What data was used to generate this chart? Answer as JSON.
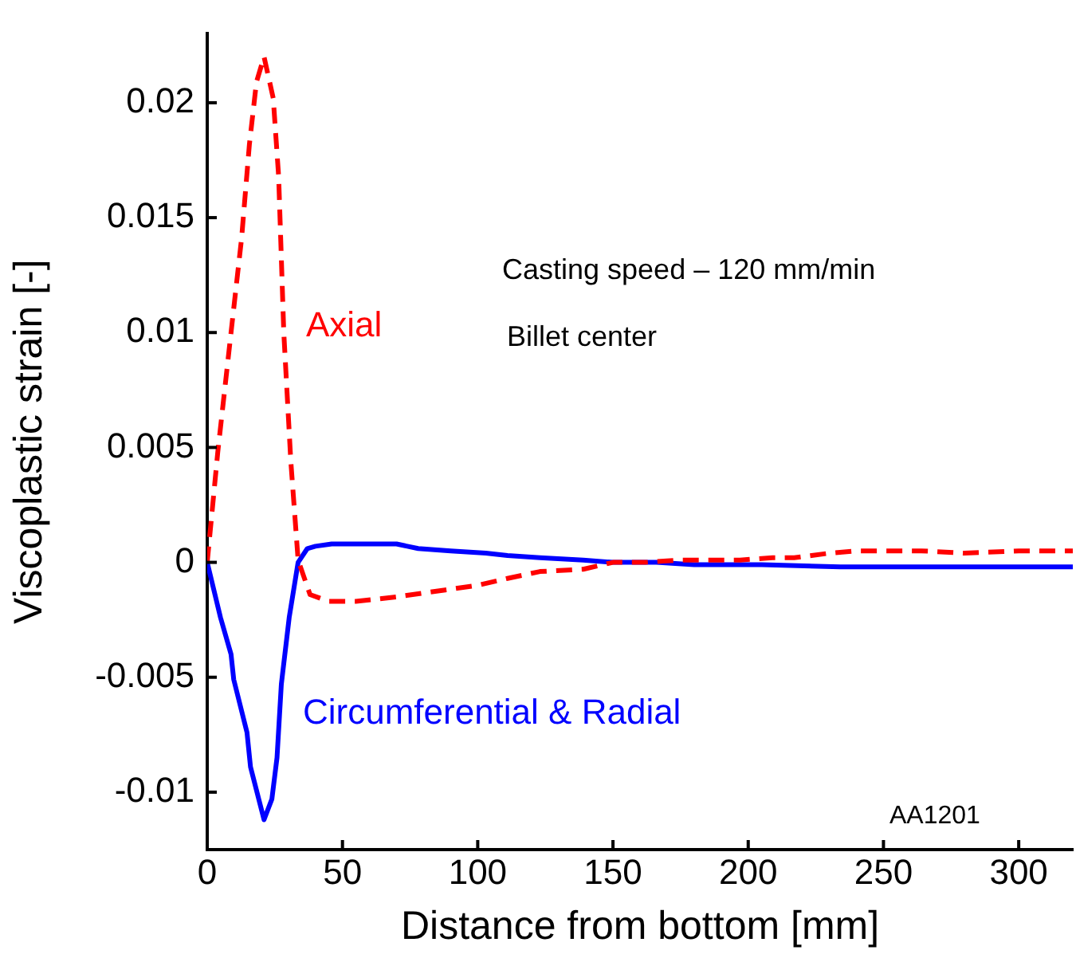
{
  "chart_data": {
    "type": "line",
    "xlabel": "Distance from bottom [mm]",
    "ylabel": "Viscoplastic strain [-]",
    "xlim": [
      0,
      320
    ],
    "xticks": [
      0,
      50,
      100,
      150,
      200,
      250,
      300
    ],
    "ylim": [
      -0.0125,
      0.023
    ],
    "yticks": [
      -0.01,
      -0.005,
      0,
      0.005,
      0.01,
      0.015,
      0.02
    ],
    "grid": false,
    "legend": false,
    "marker": "none",
    "annotations": [
      "Casting speed – 120 mm/min",
      "Billet center",
      "AA1201"
    ],
    "series": [
      {
        "name": "Axial",
        "color": "#ff0000",
        "line_style": "dashed",
        "x": [
          0,
          3.9,
          8.8,
          12.7,
          15.6,
          18.2,
          21,
          24.4,
          26.4,
          28.3,
          30.9,
          33.6,
          38,
          45,
          55,
          70,
          88,
          100,
          111,
          123,
          139,
          150,
          162,
          175,
          197,
          209,
          217,
          230,
          240,
          250,
          264,
          280,
          300,
          320
        ],
        "values": [
          0,
          0.0048,
          0.01,
          0.0141,
          0.0182,
          0.0209,
          0.022,
          0.0202,
          0.0168,
          0.01,
          0.0044,
          0.0001,
          -0.0014,
          -0.0017,
          -0.0017,
          -0.0015,
          -0.0012,
          -0.001,
          -0.0007,
          -0.0004,
          -0.0003,
          0,
          0,
          0.0001,
          0.0001,
          0.0002,
          0.0002,
          0.0004,
          0.0005,
          0.0005,
          0.0005,
          0.0004,
          0.0005,
          0.0005
        ]
      },
      {
        "name": "Circumferential & Radial",
        "color": "#0000ff",
        "line_style": "solid",
        "x": [
          0,
          4.9,
          8.8,
          9.8,
          14.7,
          16,
          21,
          23.9,
          25.8,
          27.4,
          30.3,
          33.6,
          37,
          40,
          46,
          60,
          70,
          78,
          90,
          103,
          111,
          123,
          139,
          150,
          166,
          180,
          205,
          234,
          260,
          290,
          320
        ],
        "values": [
          0,
          -0.0024,
          -0.004,
          -0.0051,
          -0.0074,
          -0.0089,
          -0.0112,
          -0.0103,
          -0.0085,
          -0.0053,
          -0.0024,
          0,
          0.0006,
          0.0007,
          0.0008,
          0.0008,
          0.0008,
          0.0006,
          0.0005,
          0.0004,
          0.0003,
          0.0002,
          0.0001,
          0,
          0,
          -0.0001,
          -0.0001,
          -0.0002,
          -0.0002,
          -0.0002,
          -0.0002
        ]
      }
    ]
  }
}
